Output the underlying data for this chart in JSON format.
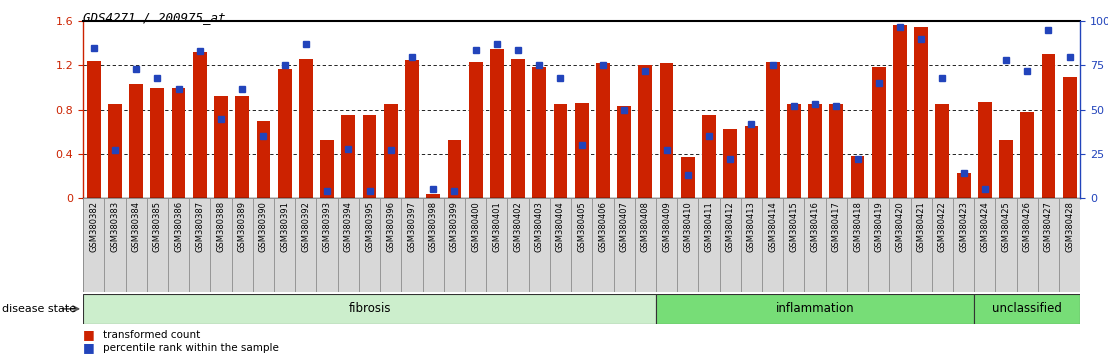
{
  "title": "GDS4271 / 200975_at",
  "samples": [
    "GSM380382",
    "GSM380383",
    "GSM380384",
    "GSM380385",
    "GSM380386",
    "GSM380387",
    "GSM380388",
    "GSM380389",
    "GSM380390",
    "GSM380391",
    "GSM380392",
    "GSM380393",
    "GSM380394",
    "GSM380395",
    "GSM380396",
    "GSM380397",
    "GSM380398",
    "GSM380399",
    "GSM380400",
    "GSM380401",
    "GSM380402",
    "GSM380403",
    "GSM380404",
    "GSM380405",
    "GSM380406",
    "GSM380407",
    "GSM380408",
    "GSM380409",
    "GSM380410",
    "GSM380411",
    "GSM380412",
    "GSM380413",
    "GSM380414",
    "GSM380415",
    "GSM380416",
    "GSM380417",
    "GSM380418",
    "GSM380419",
    "GSM380420",
    "GSM380421",
    "GSM380422",
    "GSM380423",
    "GSM380424",
    "GSM380425",
    "GSM380426",
    "GSM380427",
    "GSM380428"
  ],
  "bar_values": [
    1.24,
    0.85,
    1.03,
    1.0,
    1.0,
    1.32,
    0.92,
    0.92,
    0.7,
    1.17,
    1.26,
    0.53,
    0.75,
    0.75,
    0.85,
    1.25,
    0.04,
    0.53,
    1.23,
    1.35,
    1.26,
    1.19,
    0.85,
    0.86,
    1.22,
    0.83,
    1.2,
    1.22,
    0.37,
    0.75,
    0.63,
    0.65,
    1.23,
    0.85,
    0.85,
    0.85,
    0.38,
    1.19,
    1.57,
    1.55,
    0.85,
    0.23,
    0.87,
    0.53,
    0.78,
    1.3,
    1.1
  ],
  "percentile_values": [
    85,
    27,
    73,
    68,
    62,
    83,
    45,
    62,
    35,
    75,
    87,
    4,
    28,
    4,
    27,
    80,
    5,
    4,
    84,
    87,
    84,
    75,
    68,
    30,
    75,
    50,
    72,
    27,
    13,
    35,
    22,
    42,
    75,
    52,
    53,
    52,
    22,
    65,
    97,
    90,
    68,
    14,
    5,
    78,
    72,
    95,
    80
  ],
  "groups": [
    {
      "label": "fibrosis",
      "start": 0,
      "end": 26,
      "color": "#cceecc"
    },
    {
      "label": "inflammation",
      "start": 27,
      "end": 41,
      "color": "#77dd77"
    },
    {
      "label": "unclassified",
      "start": 42,
      "end": 46,
      "color": "#77dd77"
    }
  ],
  "bar_color": "#cc2200",
  "dot_color": "#2244bb",
  "ylim_left": [
    0,
    1.6
  ],
  "ylim_right": [
    0,
    100
  ],
  "yticks_left": [
    0,
    0.4,
    0.8,
    1.2,
    1.6
  ],
  "yticks_right": [
    0,
    25,
    50,
    75,
    100
  ],
  "grid_values": [
    0.4,
    0.8,
    1.2
  ],
  "label_bg_color": "#d8d8d8",
  "label_edge_color": "#999999"
}
